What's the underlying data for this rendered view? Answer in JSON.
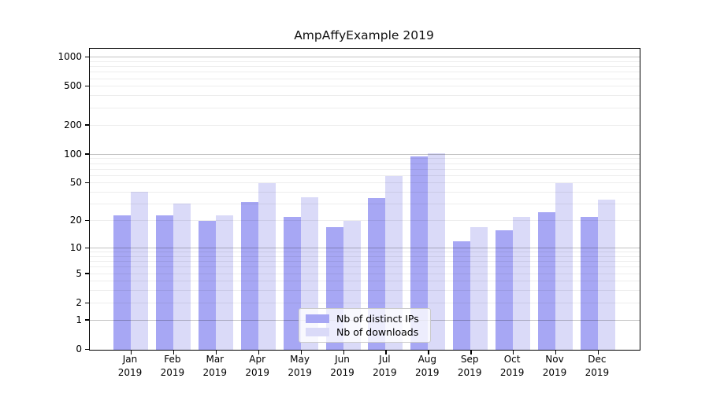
{
  "title": "AmpAffyExample 2019",
  "chart_data": {
    "type": "bar",
    "title": "AmpAffyExample 2019",
    "categories": [
      "Jan",
      "Feb",
      "Mar",
      "Apr",
      "May",
      "Jun",
      "Jul",
      "Aug",
      "Sep",
      "Oct",
      "Nov",
      "Dec"
    ],
    "category_year": "2019",
    "series": [
      {
        "name": "Nb of distinct IPs",
        "color": "#a7a7f4",
        "values": [
          23,
          23,
          20,
          32,
          22,
          17,
          35,
          95,
          12,
          16,
          25,
          22
        ]
      },
      {
        "name": "Nb of downloads",
        "color": "#dadaf8",
        "values": [
          41,
          31,
          23,
          50,
          36,
          20,
          60,
          103,
          17,
          22,
          50,
          34
        ]
      }
    ],
    "xlabel": "",
    "ylabel": "",
    "y_axis": {
      "scale": "log10(1+x)",
      "ticks": [
        0,
        1,
        2,
        5,
        10,
        20,
        50,
        100,
        200,
        500,
        1000
      ],
      "max": 1230,
      "major_gridlines": [
        1,
        10,
        100,
        1000
      ],
      "minor_gridlines": [
        2,
        3,
        4,
        5,
        6,
        7,
        8,
        9,
        20,
        30,
        40,
        50,
        60,
        70,
        80,
        90,
        200,
        300,
        400,
        500,
        600,
        700,
        800,
        900
      ]
    },
    "grid": true,
    "legend_position": "lower-center"
  },
  "colors": {
    "bar_ips": "#a7a7f4",
    "bar_downloads": "#dadaf8",
    "grid_minor": "#ececec",
    "grid_major": "#c3c3c3",
    "axis": "#000000",
    "background": "#ffffff",
    "legend_border": "#cbcbcb"
  }
}
